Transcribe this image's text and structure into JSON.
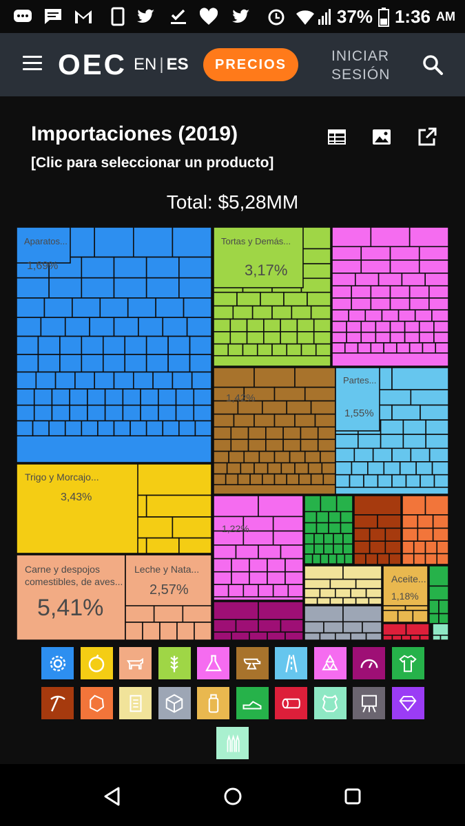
{
  "status_bar": {
    "battery": "37%",
    "time": "1:36",
    "ampm": "AM"
  },
  "header": {
    "logo": "OEC",
    "lang_en": "EN",
    "lang_sep": "|",
    "lang_es": "ES",
    "precios_label": "PRECIOS",
    "login_line1": "INICIAR",
    "login_line2": "SESIÓN"
  },
  "viz": {
    "title": "Importaciones (2019)",
    "subtitle": "[Clic para seleccionar un producto]",
    "total": "Total: $5,28MM"
  },
  "chart_data": {
    "type": "treemap",
    "total": "$5,28MM",
    "labeled_tiles": [
      {
        "label": "Aparatos...",
        "value": "1,69%",
        "color": "#2d8ff0"
      },
      {
        "label": "Tortas y Demás...",
        "value": "3,17%",
        "color": "#9fd646"
      },
      {
        "label": "",
        "value": "1,42%",
        "color": "#a8732c"
      },
      {
        "label": "Partes...",
        "value": "1,55%",
        "color": "#66c6ee"
      },
      {
        "label": "Trigo y Morcajo...",
        "value": "3,43%",
        "color": "#f4cd14"
      },
      {
        "label": "",
        "value": "1,22%",
        "color": "#f56cf0"
      },
      {
        "label": "Carne y despojos comestibles, de aves...",
        "value": "5,41%",
        "color": "#f2ab84"
      },
      {
        "label": "Leche y Nata...",
        "value": "2,57%",
        "color": "#f2ab84"
      },
      {
        "label": "Aceite...",
        "value": "1,18%",
        "color": "#e9b84f"
      }
    ]
  },
  "legend": [
    {
      "name": "gear-icon",
      "color": "#2d8ff0"
    },
    {
      "name": "fruit-icon",
      "color": "#f4cd14"
    },
    {
      "name": "animal-icon",
      "color": "#f2ab84"
    },
    {
      "name": "wheat-icon",
      "color": "#9fd646"
    },
    {
      "name": "flask-icon",
      "color": "#f56cf0"
    },
    {
      "name": "anvil-icon",
      "color": "#a8732c"
    },
    {
      "name": "road-icon",
      "color": "#66c6ee"
    },
    {
      "name": "recycle-icon",
      "color": "#f56cf0"
    },
    {
      "name": "gauge-icon",
      "color": "#9e0f75"
    },
    {
      "name": "shirt-icon",
      "color": "#26b24a"
    },
    {
      "name": "pickaxe-icon",
      "color": "#a63a0e"
    },
    {
      "name": "gem-stone-icon",
      "color": "#f2753a"
    },
    {
      "name": "scroll-icon",
      "color": "#f1e39a"
    },
    {
      "name": "box-icon",
      "color": "#9da6b5"
    },
    {
      "name": "bottle-icon",
      "color": "#e9b84f"
    },
    {
      "name": "shoe-icon",
      "color": "#26b24a"
    },
    {
      "name": "log-icon",
      "color": "#dd1f3a"
    },
    {
      "name": "hide-icon",
      "color": "#8ee8c4"
    },
    {
      "name": "easel-icon",
      "color": "#6b6570"
    },
    {
      "name": "diamond-icon",
      "color": "#9b3cf5"
    },
    {
      "name": "ammo-icon",
      "color": "#a9f0cf"
    }
  ]
}
